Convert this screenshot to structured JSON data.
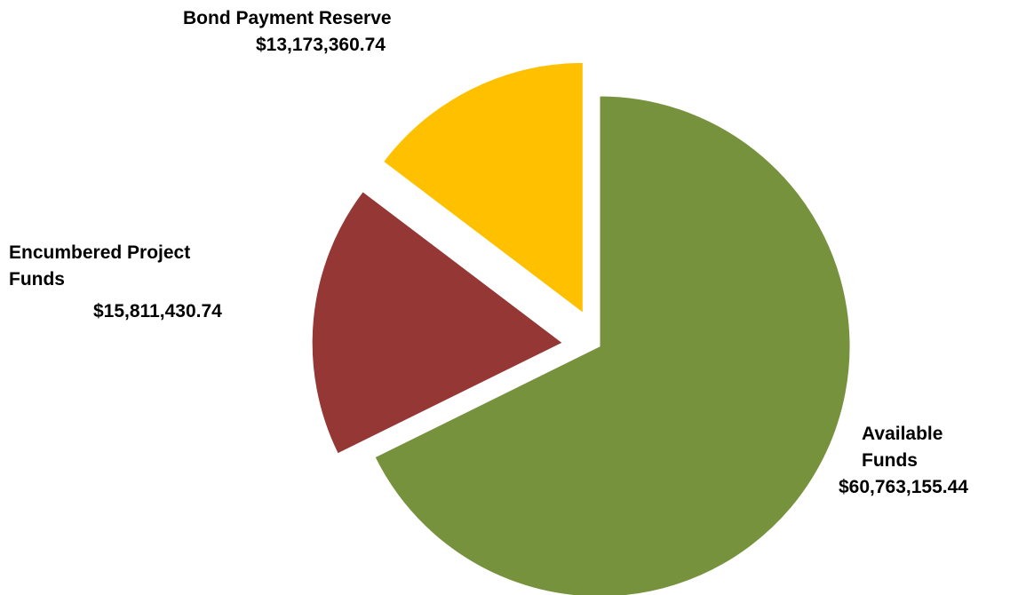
{
  "chart_data": {
    "type": "pie",
    "title": "",
    "slices": [
      {
        "name_lines": [
          "Available",
          "Funds"
        ],
        "label": "Available Funds",
        "value": 60763155.44,
        "value_text": "$60,763,155.44",
        "color": "#76923C",
        "exploded": false
      },
      {
        "name_lines": [
          "Encumbered Project",
          "Funds"
        ],
        "label": "Encumbered Project Funds",
        "value": 15811430.74,
        "value_text": "$15,811,430.74",
        "color": "#953735",
        "exploded": true
      },
      {
        "name_lines": [
          "Bond Payment Reserve"
        ],
        "label": "Bond Payment Reserve",
        "value": 13173360.74,
        "value_text": "$13,173,360.74",
        "color": "#FFC000",
        "exploded": true
      }
    ],
    "start_angle_deg": 0,
    "direction": "clockwise",
    "legend": "none"
  }
}
